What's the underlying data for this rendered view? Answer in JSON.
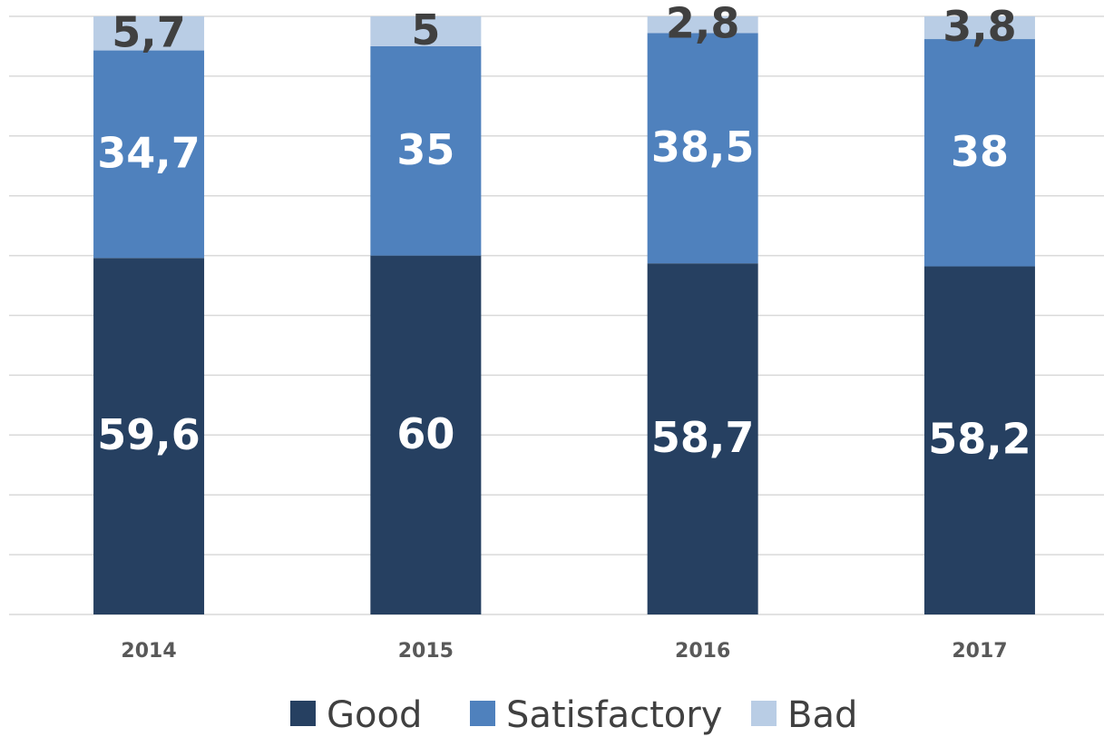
{
  "chart_data": {
    "type": "stacked_bar",
    "categories": [
      "2014",
      "2015",
      "2016",
      "2017"
    ],
    "series": [
      {
        "name": "Good",
        "color": "#264061",
        "values": [
          59.6,
          60,
          58.7,
          58.2
        ],
        "value_labels": [
          "59,6",
          "60",
          "58,7",
          "58,2"
        ]
      },
      {
        "name": "Satisfactory",
        "color": "#4f81bd",
        "values": [
          34.7,
          35,
          38.5,
          38
        ],
        "value_labels": [
          "34,7",
          "35",
          "38,5",
          "38"
        ]
      },
      {
        "name": "Bad",
        "color": "#b9cde5",
        "values": [
          5.7,
          5,
          2.8,
          3.8
        ],
        "value_labels": [
          "5,7",
          "5",
          "2,8",
          "3,8"
        ]
      }
    ],
    "ylim": [
      0,
      100
    ],
    "yticks": [
      0,
      10,
      20,
      30,
      40,
      50,
      60,
      70,
      80,
      90,
      100
    ],
    "grid": true,
    "legend": "bottom"
  }
}
